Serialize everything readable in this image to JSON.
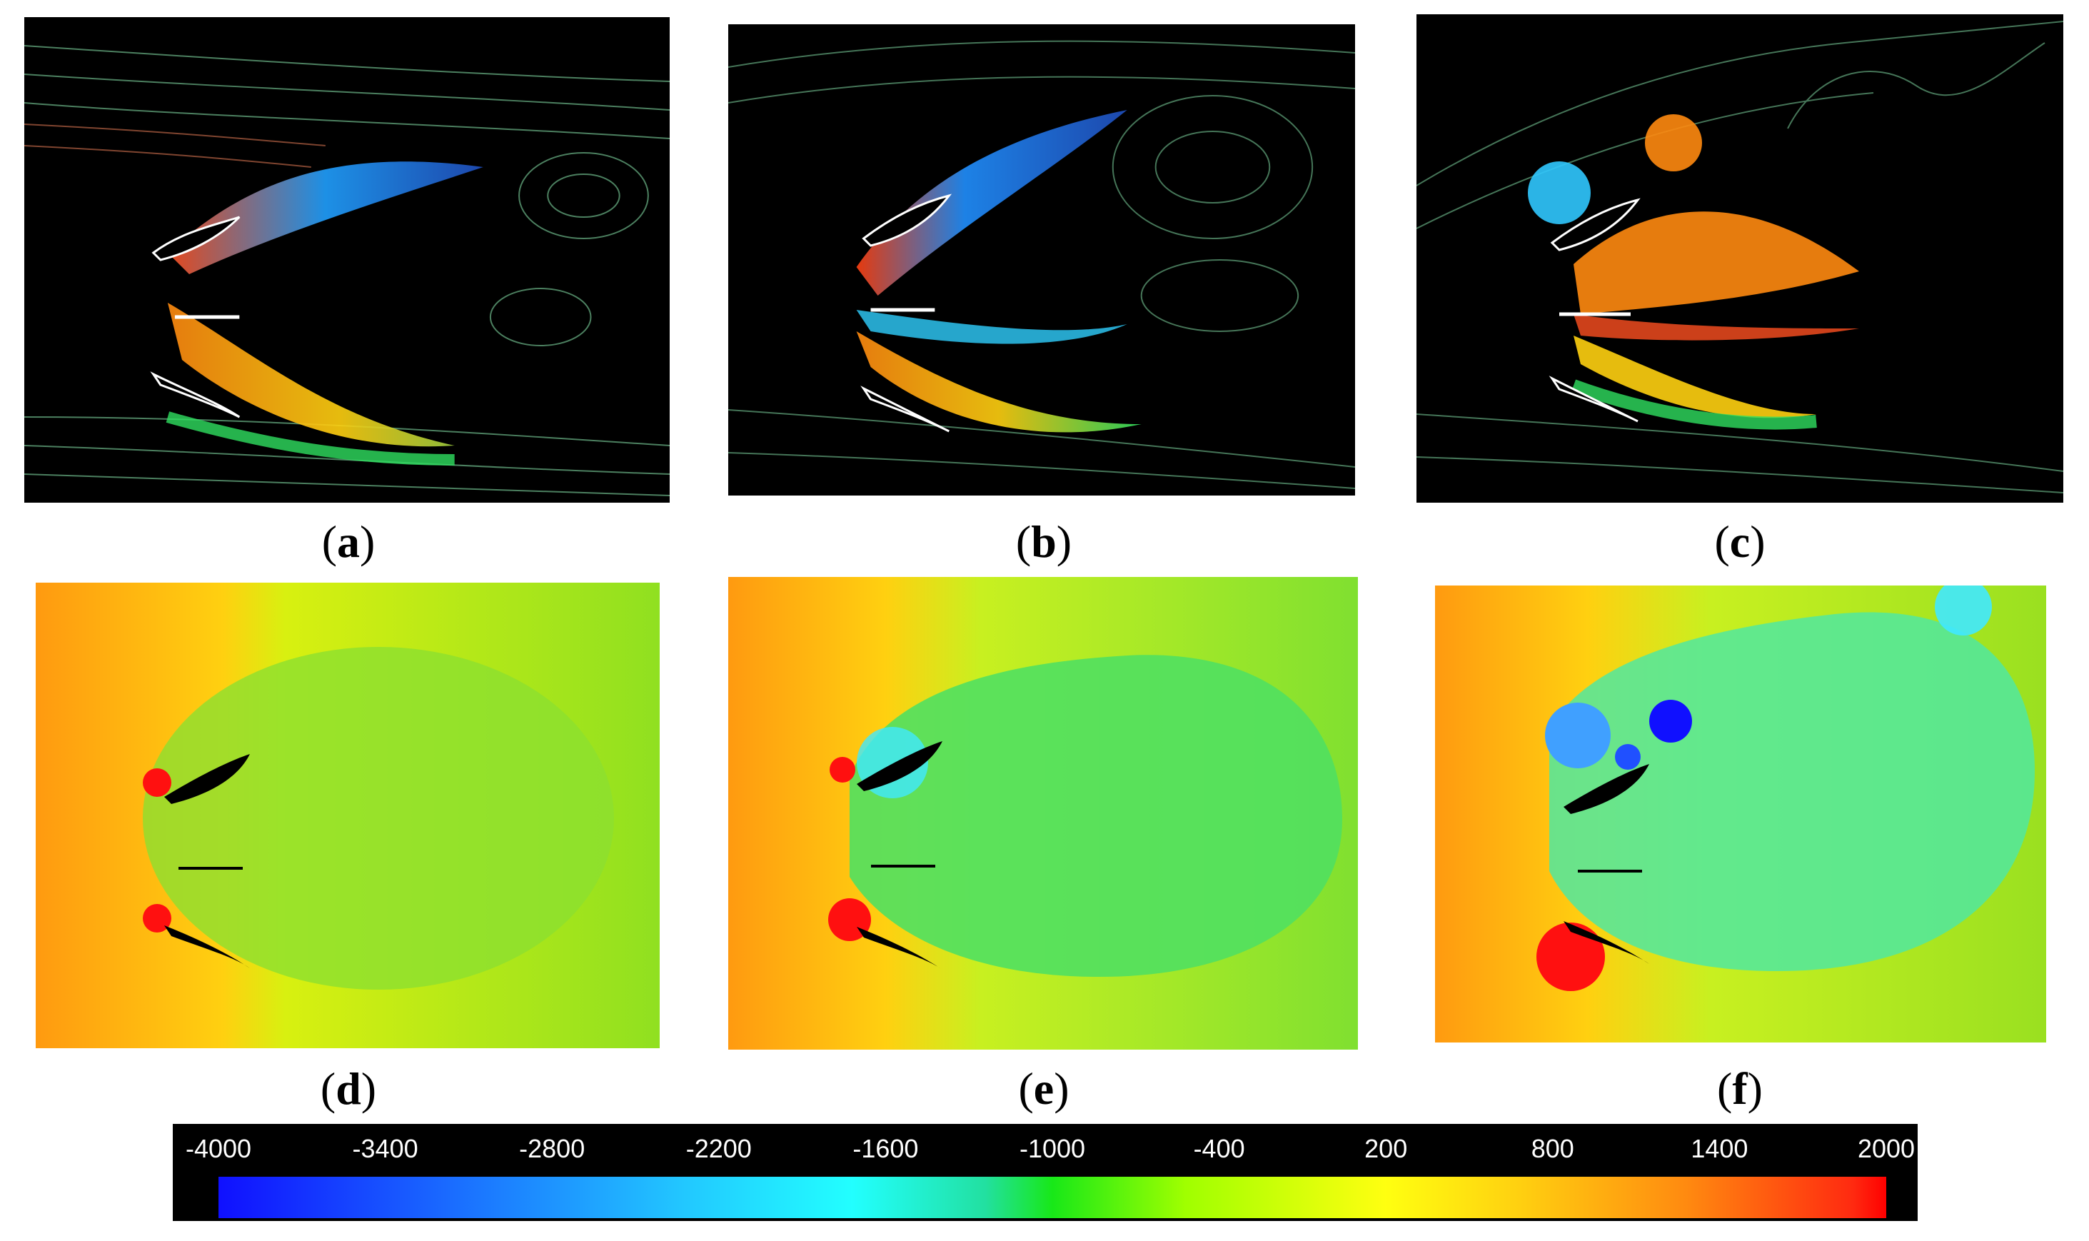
{
  "panels": [
    {
      "id": "a",
      "caption": "a",
      "kind": "streamlines"
    },
    {
      "id": "b",
      "caption": "b",
      "kind": "streamlines"
    },
    {
      "id": "c",
      "caption": "c",
      "kind": "streamlines"
    },
    {
      "id": "d",
      "caption": "d",
      "kind": "pressure-contour"
    },
    {
      "id": "e",
      "caption": "e",
      "kind": "pressure-contour"
    },
    {
      "id": "f",
      "caption": "f",
      "kind": "pressure-contour"
    }
  ],
  "colorbar": {
    "ticks": [
      "-4000",
      "-3400",
      "-2800",
      "-2200",
      "-1600",
      "-1000",
      "-400",
      "200",
      "800",
      "1400",
      "2000"
    ],
    "min": -4000,
    "max": 2000,
    "colors": {
      "low": "#1010ff",
      "mid_low": "#22ffff",
      "mid": "#18e818",
      "mid_high": "#ffff10",
      "high": "#ff0000"
    }
  }
}
